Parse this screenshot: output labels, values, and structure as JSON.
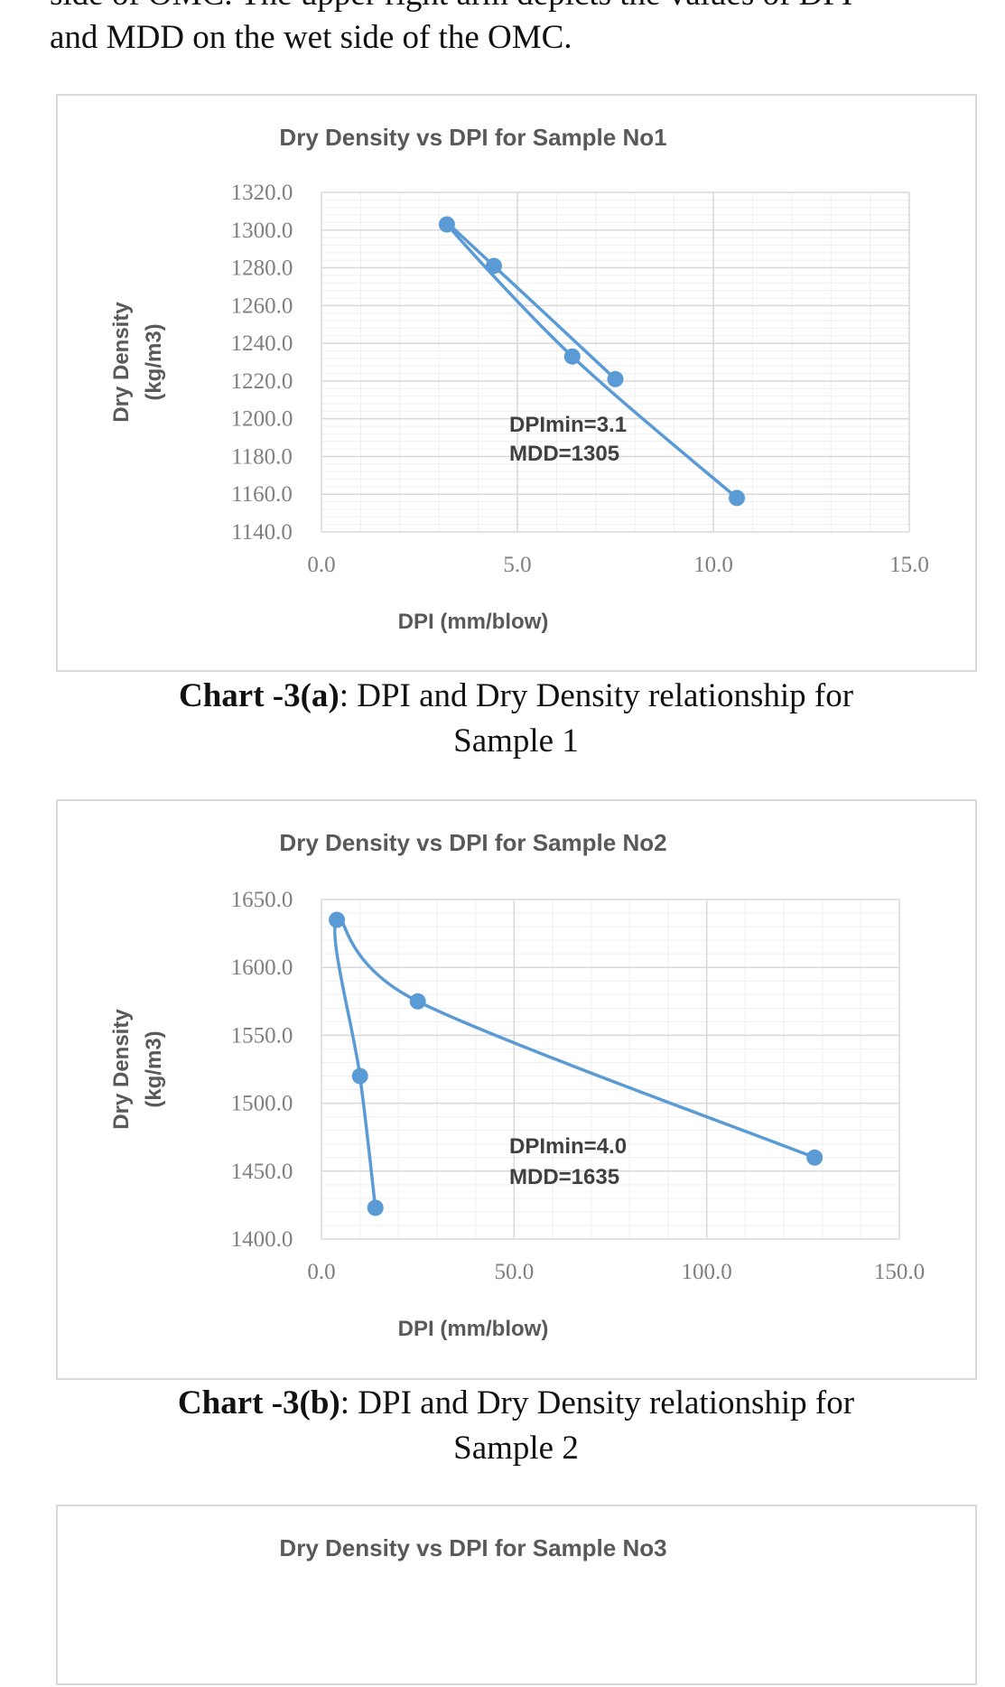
{
  "text": {
    "line_top_partial": "side of OMC. The upper right arm depicts the values of DPI",
    "line_2": "and MDD on the wet side of the OMC."
  },
  "captions": [
    {
      "bold": "Chart -3(a)",
      "rest": ": DPI and Dry Density relationship for",
      "line2": "Sample 1"
    },
    {
      "bold": "Chart -3(b)",
      "rest": ": DPI and Dry Density relationship for",
      "line2": "Sample 2"
    }
  ],
  "colors": {
    "series": "#5b9bd5",
    "grid": "#d9d9d9",
    "text": "#595959"
  },
  "chart_data": [
    {
      "type": "line",
      "title": "Dry Density vs DPI for Sample No1",
      "xlabel": "DPI (mm/blow)",
      "ylabel": [
        "Dry Density",
        "(kg/m3)"
      ],
      "xlim": [
        0,
        15
      ],
      "ylim": [
        1140,
        1320
      ],
      "xticks": [
        "0.0",
        "5.0",
        "10.0",
        "15.0"
      ],
      "yticks": [
        "1140.0",
        "1160.0",
        "1180.0",
        "1200.0",
        "1220.0",
        "1240.0",
        "1260.0",
        "1280.0",
        "1300.0",
        "1320.0"
      ],
      "grid": true,
      "x": [
        7.5,
        4.4,
        3.2,
        6.4,
        10.6
      ],
      "y": [
        1221,
        1281,
        1303,
        1233,
        1158
      ],
      "annotation": [
        "DPImin=3.1",
        "MDD=1305"
      ]
    },
    {
      "type": "line",
      "title": "Dry Density vs DPI for Sample No2",
      "xlabel": "DPI (mm/blow)",
      "ylabel": [
        "Dry Density",
        "(kg/m3)"
      ],
      "xlim": [
        0,
        150
      ],
      "ylim": [
        1400,
        1650
      ],
      "xticks": [
        "0.0",
        "50.0",
        "100.0",
        "150.0"
      ],
      "yticks": [
        "1400.0",
        "1450.0",
        "1500.0",
        "1550.0",
        "1600.0",
        "1650.0"
      ],
      "grid": true,
      "x": [
        14,
        10,
        4,
        25,
        128
      ],
      "y": [
        1423,
        1520,
        1635,
        1575,
        1460
      ],
      "annotation": [
        "DPImin=4.0",
        "MDD=1635"
      ]
    },
    {
      "type": "line",
      "title": "Dry Density vs DPI for Sample No3"
    }
  ]
}
